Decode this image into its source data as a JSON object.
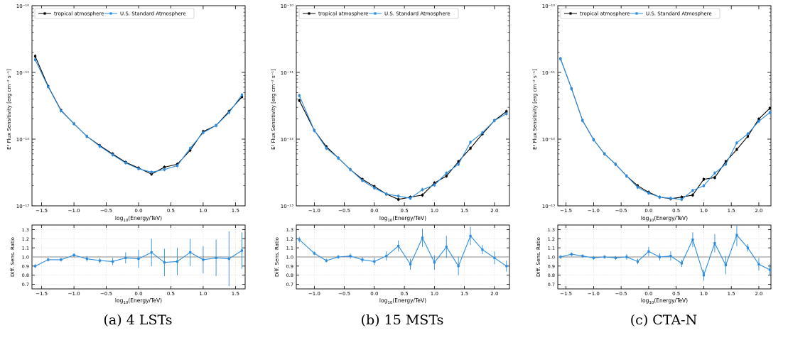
{
  "colors": {
    "tropical": "#000000",
    "us_standard": "#2b8cde",
    "ratio": "#2b8cde",
    "reference_line": "#888888"
  },
  "common": {
    "xlabel_main": "log",
    "xlabel_sub": "10",
    "xlabel_rest": "(Energy/TeV)",
    "ylabel_main": "E² Flux Sensitivity [erg cm⁻² s⁻¹]",
    "ylabel_ratio": "Diff. Sens. Ratio",
    "legend": [
      "tropical atmosphere",
      "U.S. Standard Atmosphere"
    ]
  },
  "chart_data": [
    {
      "type": "line",
      "caption": "(a) 4 LSTs",
      "xlim": [
        -1.65,
        1.65
      ],
      "xticks": [
        -1.5,
        -1.0,
        -0.5,
        0.0,
        0.5,
        1.0,
        1.5
      ],
      "xtick_labels": [
        "−1.5",
        "−1.0",
        "−0.5",
        "0.0",
        "0.5",
        "1.0",
        "1.5"
      ],
      "ylim_log": [
        1e-13,
        1e-10
      ],
      "yticks": [
        "10⁻¹³",
        "10⁻¹²",
        "10⁻¹¹",
        "10⁻¹⁰"
      ],
      "x": [
        -1.6,
        -1.4,
        -1.2,
        -1.0,
        -0.8,
        -0.6,
        -0.4,
        -0.2,
        0.0,
        0.2,
        0.4,
        0.6,
        0.8,
        1.0,
        1.2,
        1.4,
        1.6
      ],
      "series": [
        {
          "name": "tropical atmosphere",
          "values": [
            1.75e-11,
            6.2e-12,
            2.7e-12,
            1.7e-12,
            1.1e-12,
            8e-13,
            6e-13,
            4.5e-13,
            3.7e-13,
            3e-13,
            3.8e-13,
            4.2e-13,
            6.8e-13,
            1.3e-12,
            1.6e-12,
            2.6e-12,
            4.3e-12
          ]
        },
        {
          "name": "U.S. Standard Atmosphere",
          "values": [
            1.55e-11,
            6.1e-12,
            2.65e-12,
            1.7e-12,
            1.1e-12,
            7.8e-13,
            5.8e-13,
            4.4e-13,
            3.6e-13,
            3.2e-13,
            3.5e-13,
            4e-13,
            7.3e-13,
            1.25e-12,
            1.6e-12,
            2.5e-12,
            4.6e-12
          ]
        }
      ],
      "ratio": {
        "ylim": [
          0.65,
          1.35
        ],
        "yticks": [
          "0.7",
          "0.8",
          "0.9",
          "1.0",
          "1.1",
          "1.2",
          "1.3"
        ],
        "values": [
          0.9,
          0.97,
          0.97,
          1.02,
          0.98,
          0.96,
          0.95,
          0.99,
          0.98,
          1.05,
          0.94,
          0.95,
          1.05,
          0.97,
          0.99,
          0.98,
          1.07
        ],
        "errors": [
          0.02,
          0.02,
          0.02,
          0.02,
          0.03,
          0.03,
          0.04,
          0.06,
          0.1,
          0.15,
          0.15,
          0.15,
          0.15,
          0.15,
          0.2,
          0.3,
          0.2
        ]
      }
    },
    {
      "type": "line",
      "caption": "(b) 15 MSTs",
      "xlim": [
        -1.3,
        2.25
      ],
      "xticks": [
        -1.0,
        -0.5,
        0.0,
        0.5,
        1.0,
        1.5,
        2.0
      ],
      "xtick_labels": [
        "−1.0",
        "−0.5",
        "0.0",
        "0.5",
        "1.0",
        "1.5",
        "2.0"
      ],
      "ylim_log": [
        1e-13,
        1e-10
      ],
      "yticks": [
        "10⁻¹³",
        "10⁻¹²",
        "10⁻¹¹",
        "10⁻¹⁰"
      ],
      "x": [
        -1.25,
        -1.0,
        -0.8,
        -0.6,
        -0.4,
        -0.2,
        0.0,
        0.2,
        0.4,
        0.6,
        0.8,
        1.0,
        1.2,
        1.4,
        1.6,
        1.8,
        2.0,
        2.2
      ],
      "series": [
        {
          "name": "tropical atmosphere",
          "values": [
            3.8e-12,
            1.35e-12,
            7.7e-13,
            5.2e-13,
            3.5e-13,
            2.5e-13,
            1.95e-13,
            1.5e-13,
            1.25e-13,
            1.35e-13,
            1.45e-13,
            2.2e-13,
            2.8e-13,
            4.6e-13,
            7.3e-13,
            1.2e-12,
            1.9e-12,
            2.6e-12
          ]
        },
        {
          "name": "U.S. Standard Atmosphere",
          "values": [
            4.5e-12,
            1.35e-12,
            7.3e-13,
            5.2e-13,
            3.5e-13,
            2.4e-13,
            1.85e-13,
            1.5e-13,
            1.4e-13,
            1.3e-13,
            1.75e-13,
            2.05e-13,
            3.1e-13,
            4.2e-13,
            9e-13,
            1.25e-12,
            1.9e-12,
            2.4e-12
          ]
        }
      ],
      "ratio": {
        "ylim": [
          0.65,
          1.35
        ],
        "yticks": [
          "0.7",
          "0.8",
          "0.9",
          "1.0",
          "1.1",
          "1.2",
          "1.3"
        ],
        "values": [
          1.19,
          1.04,
          0.96,
          1.0,
          1.01,
          0.97,
          0.95,
          1.01,
          1.12,
          0.92,
          1.21,
          0.94,
          1.11,
          0.9,
          1.23,
          1.08,
          0.99,
          0.9
        ],
        "errors": [
          0.03,
          0.02,
          0.02,
          0.02,
          0.03,
          0.03,
          0.04,
          0.05,
          0.06,
          0.06,
          0.1,
          0.08,
          0.12,
          0.1,
          0.1,
          0.05,
          0.07,
          0.06
        ]
      }
    },
    {
      "type": "line",
      "caption": "(c) CTA-N",
      "xlim": [
        -1.65,
        2.22
      ],
      "xticks": [
        -1.5,
        -1.0,
        -0.5,
        0.0,
        0.5,
        1.0,
        1.5,
        2.0
      ],
      "xtick_labels": [
        "−1.5",
        "−1.0",
        "−0.5",
        "0.0",
        "0.5",
        "1.0",
        "1.5",
        "2.0"
      ],
      "ylim_log": [
        1e-13,
        1e-10
      ],
      "yticks": [
        "10⁻¹³",
        "10⁻¹²",
        "10⁻¹¹",
        "10⁻¹⁰"
      ],
      "x": [
        -1.6,
        -1.4,
        -1.2,
        -1.0,
        -0.8,
        -0.6,
        -0.4,
        -0.2,
        0.0,
        0.2,
        0.4,
        0.6,
        0.8,
        1.0,
        1.2,
        1.4,
        1.6,
        1.8,
        2.0,
        2.2
      ],
      "series": [
        {
          "name": "tropical atmosphere",
          "values": [
            1.6e-11,
            5.7e-12,
            1.9e-12,
            9.8e-13,
            6e-13,
            4.2e-13,
            2.8e-13,
            2e-13,
            1.6e-13,
            1.35e-13,
            1.28e-13,
            1.35e-13,
            1.45e-13,
            2.5e-13,
            2.65e-13,
            4.6e-13,
            7e-13,
            1.1e-12,
            2e-12,
            2.9e-12
          ]
        },
        {
          "name": "U.S. Standard Atmosphere",
          "values": [
            1.6e-11,
            5.7e-12,
            1.9e-12,
            9.8e-13,
            6e-13,
            4.2e-13,
            2.8e-13,
            1.9e-13,
            1.55e-13,
            1.35e-13,
            1.3e-13,
            1.25e-13,
            1.7e-13,
            2e-13,
            3.1e-13,
            4.2e-13,
            8.8e-13,
            1.2e-12,
            1.85e-12,
            2.5e-12
          ]
        }
      ],
      "ratio": {
        "ylim": [
          0.65,
          1.35
        ],
        "yticks": [
          "0.7",
          "0.8",
          "0.9",
          "1.0",
          "1.1",
          "1.2",
          "1.3"
        ],
        "values": [
          1.0,
          1.03,
          1.01,
          0.99,
          1.0,
          0.99,
          1.0,
          0.95,
          1.06,
          1.0,
          1.01,
          0.93,
          1.19,
          0.8,
          1.15,
          0.91,
          1.24,
          1.1,
          0.92,
          0.86
        ],
        "errors": [
          0.02,
          0.02,
          0.02,
          0.02,
          0.02,
          0.02,
          0.03,
          0.03,
          0.05,
          0.04,
          0.05,
          0.04,
          0.08,
          0.06,
          0.1,
          0.1,
          0.12,
          0.04,
          0.07,
          0.06
        ]
      }
    }
  ]
}
